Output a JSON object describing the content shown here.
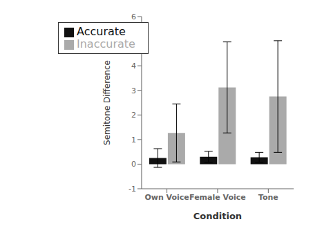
{
  "chart_data": {
    "type": "bar",
    "xlabel": "Condition",
    "ylabel": "Semitone Difference",
    "categories": [
      "Own Voice",
      "Female Voice",
      "Tone"
    ],
    "series": [
      {
        "name": "Accurate",
        "color": "#111111",
        "values": [
          0.25,
          0.3,
          0.28
        ],
        "errors": [
          0.38,
          0.22,
          0.2
        ]
      },
      {
        "name": "Inaccurate",
        "color": "#aaaaaa",
        "values": [
          1.27,
          3.12,
          2.75
        ],
        "errors": [
          1.18,
          1.85,
          2.27
        ]
      }
    ],
    "ylim": [
      -1,
      6
    ],
    "yticks": [
      -1,
      0,
      1,
      2,
      3,
      4,
      5,
      6
    ],
    "grid": false,
    "legend": "upper left"
  }
}
